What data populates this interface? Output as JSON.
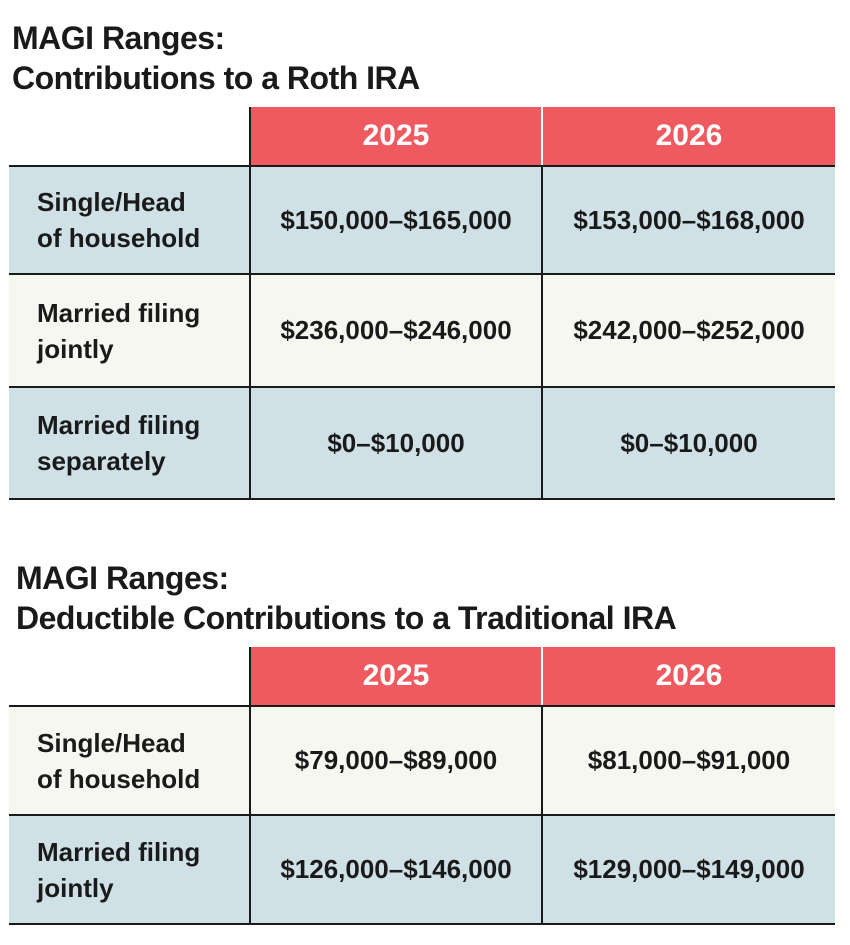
{
  "section1": {
    "title_line1": "MAGI Ranges:",
    "title_line2": "Contributions to a Roth IRA",
    "headers": [
      "2025",
      "2026"
    ],
    "rows": [
      {
        "label_line1": "Single/Head",
        "label_line2": "of household",
        "y2025": "$150,000–$165,000",
        "y2026": "$153,000–$168,000"
      },
      {
        "label_line1": "Married filing",
        "label_line2": "jointly",
        "y2025": "$236,000–$246,000",
        "y2026": "$242,000–$252,000"
      },
      {
        "label_line1": "Married filing",
        "label_line2": "separately",
        "y2025": "$0–$10,000",
        "y2026": "$0–$10,000"
      }
    ]
  },
  "section2": {
    "title_line1": "MAGI Ranges:",
    "title_line2": "Deductible Contributions to a Traditional IRA",
    "headers": [
      "2025",
      "2026"
    ],
    "rows": [
      {
        "label_line1": "Single/Head",
        "label_line2": "of household",
        "y2025": "$79,000–$89,000",
        "y2026": "$81,000–$91,000"
      },
      {
        "label_line1": "Married filing",
        "label_line2": "jointly",
        "y2025": "$126,000–$146,000",
        "y2026": "$129,000–$149,000"
      }
    ]
  },
  "colors": {
    "header_red": "#ee5a5f",
    "row_blue": "#cfe1e6",
    "row_cream": "#f7f7f2"
  }
}
